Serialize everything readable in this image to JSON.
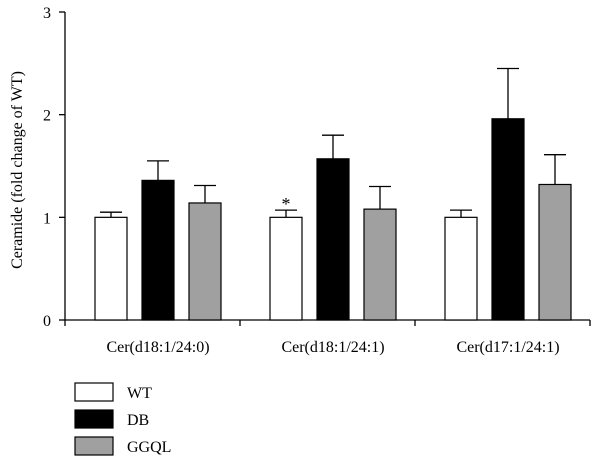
{
  "chart_data": {
    "type": "bar",
    "title": "",
    "xlabel": "",
    "ylabel": "Ceramide (fold change of WT)",
    "ylim": [
      0,
      3
    ],
    "yticks": [
      "0",
      "1",
      "2",
      "3"
    ],
    "grid": false,
    "legend_position": "bottom-left",
    "categories": [
      "Cer(d18:1/24:0)",
      "Cer(d18:1/24:1)",
      "Cer(d17:1/24:1)"
    ],
    "series": [
      {
        "name": "WT",
        "color": "#ffffff",
        "values": [
          1.0,
          1.0,
          1.0
        ],
        "errors": [
          0.05,
          0.07,
          0.07
        ]
      },
      {
        "name": "DB",
        "color": "#000000",
        "values": [
          1.36,
          1.57,
          1.96
        ],
        "errors": [
          0.19,
          0.23,
          0.49
        ]
      },
      {
        "name": "GGQL",
        "color": "#a0a0a0",
        "values": [
          1.14,
          1.08,
          1.32
        ],
        "errors": [
          0.17,
          0.22,
          0.29
        ]
      }
    ],
    "annotations": [
      {
        "text": "*",
        "category_index": 1,
        "series_index": 0
      }
    ]
  }
}
